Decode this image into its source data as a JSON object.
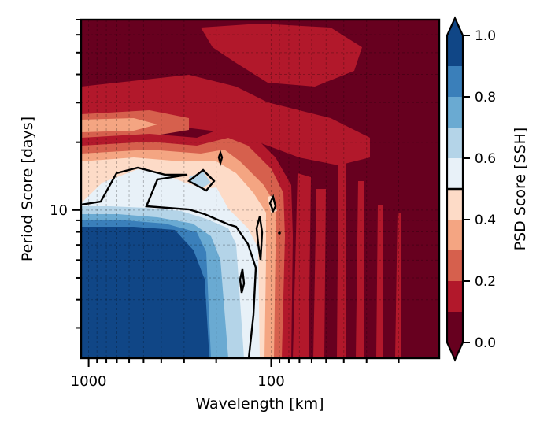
{
  "chart_data": {
    "type": "heatmap",
    "title": "",
    "xlabel": "Wavelength [km]",
    "ylabel": "Period Score [days]",
    "x_scale": "log",
    "y_scale": "log",
    "x_axis_direction": "decreasing",
    "xlim": [
      1100,
      12
    ],
    "ylim": [
      2.2,
      70
    ],
    "x_tick_labels": [
      {
        "value": 1000,
        "label": "1000"
      },
      {
        "value": 100,
        "label": "100"
      }
    ],
    "y_tick_labels": [
      {
        "value": 10,
        "label": "10"
      }
    ],
    "grid": true,
    "colorbar": {
      "label": "PSD Score [SSH]",
      "range": [
        0.0,
        1.0
      ],
      "levels": [
        0.0,
        0.1,
        0.2,
        0.3,
        0.4,
        0.5,
        0.6,
        0.7,
        0.8,
        0.9,
        1.0
      ],
      "tick_labels": [
        "0.0",
        "0.2",
        "0.4",
        "0.6",
        "0.8",
        "1.0"
      ],
      "colors": [
        "#67001f",
        "#b2182b",
        "#d6604d",
        "#f4a582",
        "#fddbc7",
        "#e8f1f8",
        "#b4d4e8",
        "#6aaad2",
        "#3a7fba",
        "#104686"
      ],
      "extend": "both",
      "contour_line_level": 0.5
    },
    "regions": [
      {
        "wavelength_range_km": [
          1100,
          150
        ],
        "period_range_days": [
          2.2,
          6
        ],
        "psd_score": 0.95
      },
      {
        "wavelength_range_km": [
          150,
          135
        ],
        "period_range_days": [
          2.2,
          6
        ],
        "psd_score": 0.85
      },
      {
        "wavelength_range_km": [
          135,
          120
        ],
        "period_range_days": [
          2.2,
          8
        ],
        "psd_score": 0.65
      },
      {
        "wavelength_range_km": [
          1100,
          700
        ],
        "period_range_days": [
          10,
          12
        ],
        "psd_score": 0.55
      },
      {
        "wavelength_range_km": [
          1100,
          300
        ],
        "period_range_days": [
          12,
          18
        ],
        "psd_score": 0.4
      },
      {
        "wavelength_range_km": [
          1100,
          300
        ],
        "period_range_days": [
          22,
          27
        ],
        "psd_score": 0.3
      },
      {
        "wavelength_range_km": [
          80,
          12
        ],
        "period_range_days": [
          2.2,
          70
        ],
        "psd_score": 0.05
      },
      {
        "wavelength_range_km": [
          1100,
          12
        ],
        "period_range_days": [
          30,
          70
        ],
        "psd_score": 0.05
      }
    ]
  }
}
